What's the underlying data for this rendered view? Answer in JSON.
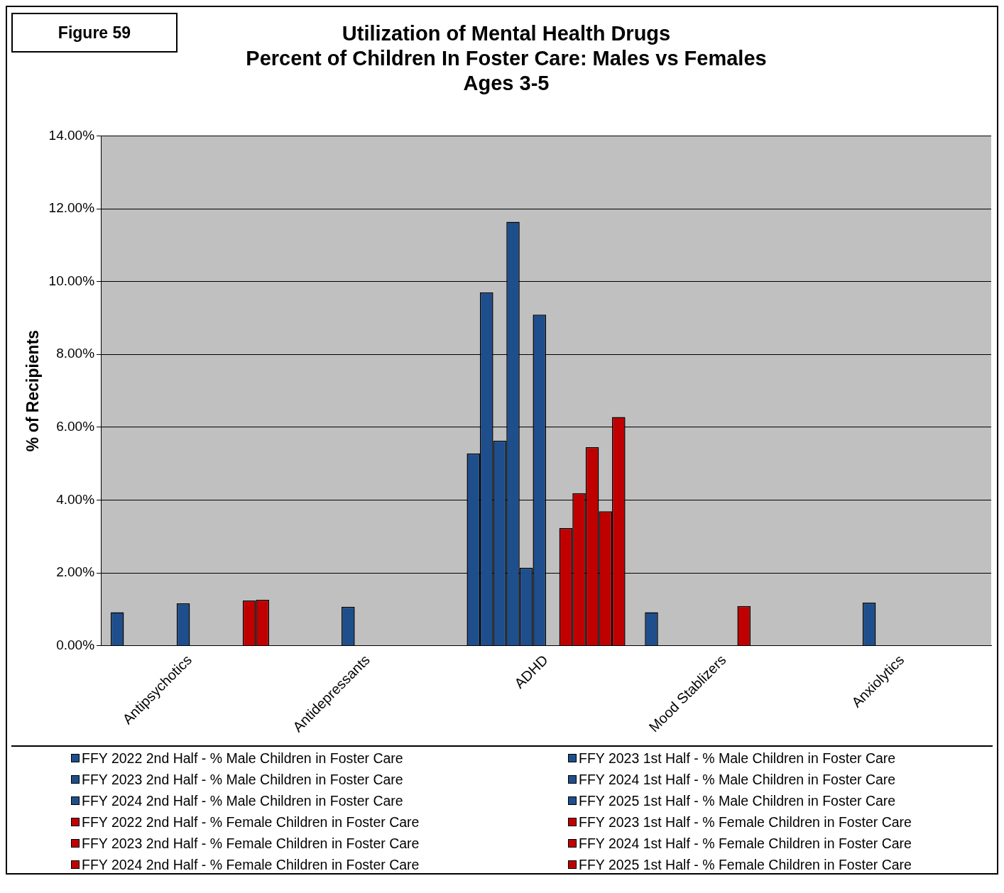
{
  "chart_data": {
    "type": "bar",
    "title": "Utilization of Mental Health Drugs\nPercent of Children In Foster Care: Males vs Females\nAges 3-5",
    "ylabel": "% of Recipients",
    "annotations": [
      "Figure 59"
    ],
    "categories": [
      "Antipsychotics",
      "Antidepressants",
      "ADHD",
      "Mood Stablizers",
      "Anxiolytics"
    ],
    "ylim": [
      0,
      14
    ],
    "yticks": [
      {
        "value": 0,
        "label": "0.00%"
      },
      {
        "value": 2,
        "label": "2.00%"
      },
      {
        "value": 4,
        "label": "4.00%"
      },
      {
        "value": 6,
        "label": "6.00%"
      },
      {
        "value": 8,
        "label": "8.00%"
      },
      {
        "value": 10,
        "label": "10.00%"
      },
      {
        "value": 12,
        "label": "12.00%"
      },
      {
        "value": 14,
        "label": "14.00%"
      }
    ],
    "grid": "y",
    "legend": "bottom",
    "series": [
      {
        "name": "FFY 2022 2nd Half - % Male Children in Foster Care",
        "color": "#1f4e8c",
        "values": [
          0.92,
          0,
          5.28,
          0.92,
          0
        ]
      },
      {
        "name": "FFY 2023 1st Half - % Male Children in Foster Care",
        "color": "#1f4e8c",
        "values": [
          0,
          0,
          9.7,
          0,
          0
        ]
      },
      {
        "name": "FFY 2023 2nd Half - % Male Children in Foster Care",
        "color": "#1f4e8c",
        "values": [
          0,
          0,
          5.63,
          0,
          0
        ]
      },
      {
        "name": "FFY 2024 1st Half - % Male Children in Foster Care",
        "color": "#1f4e8c",
        "values": [
          0,
          0,
          11.64,
          0,
          1.18
        ]
      },
      {
        "name": "FFY 2024 2nd Half - % Male Children in Foster Care",
        "color": "#1f4e8c",
        "values": [
          0,
          1.07,
          2.14,
          0,
          0
        ]
      },
      {
        "name": "FFY 2025 1st Half - % Male Children in Foster Care",
        "color": "#1f4e8c",
        "values": [
          1.16,
          0,
          9.09,
          0,
          0
        ]
      },
      {
        "name": "FFY 2022 2nd Half - % Female Children in Foster Care",
        "color": "#c00000",
        "values": [
          0,
          0,
          0,
          0,
          0
        ]
      },
      {
        "name": "FFY 2023 1st Half - % Female Children in Foster Care",
        "color": "#c00000",
        "values": [
          0,
          0,
          3.23,
          1.09,
          0
        ]
      },
      {
        "name": "FFY 2023 2nd Half - % Female Children in Foster Care",
        "color": "#c00000",
        "values": [
          0,
          0,
          4.19,
          0,
          0
        ]
      },
      {
        "name": "FFY 2024 1st Half - % Female Children in Foster Care",
        "color": "#c00000",
        "values": [
          0,
          0,
          5.45,
          0,
          0
        ]
      },
      {
        "name": "FFY 2024 2nd Half - % Female Children in Foster Care",
        "color": "#c00000",
        "values": [
          1.24,
          0,
          3.69,
          0,
          0
        ]
      },
      {
        "name": "FFY 2025 1st Half - % Female Children in Foster Care",
        "color": "#c00000",
        "values": [
          1.26,
          0,
          6.28,
          0,
          0
        ]
      }
    ]
  }
}
